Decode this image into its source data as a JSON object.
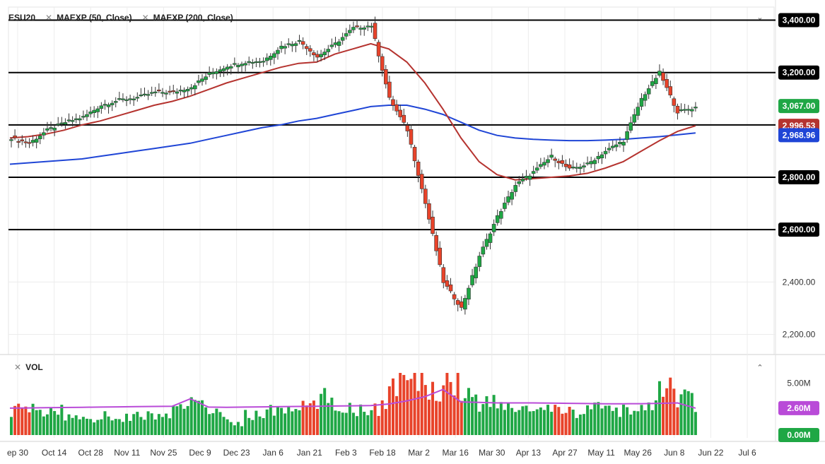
{
  "header": {
    "symbol": "ESU20",
    "studies": [
      "MAEXP (50, Close)",
      "MAEXP (200, Close)"
    ]
  },
  "volume_pane": {
    "label": "VOL",
    "axis_labels": [
      "5.00M"
    ],
    "current_label": "2.60M",
    "zero_label": "0.00M"
  },
  "colors": {
    "up": "#1fa745",
    "down": "#e8432a",
    "ma50": "#b5332f",
    "ma200": "#1f45d6",
    "vol_ma": "#b94bd8",
    "level_line": "#000000",
    "price_tag": "#000000",
    "last_price_tag": "#1fa745"
  },
  "chart_data": [
    {
      "type": "candlestick",
      "title": "ESU20",
      "ylim": [
        2150,
        3450
      ],
      "y_ticks": [
        "3,400.00",
        "3,200.00",
        "3,067.00",
        "2,996.53",
        "2,968.96",
        "2,800.00",
        "2,600.00",
        "2,400.00",
        "2,200.00"
      ],
      "horizontal_levels": [
        3400,
        3200,
        3000,
        2800,
        2600
      ],
      "last_price": 3067.0,
      "ma50_last": 2996.53,
      "ma200_last": 2968.96,
      "x_ticks": [
        "ep 30",
        "Oct 14",
        "Oct 28",
        "Nov 11",
        "Nov 25",
        "Dec 9",
        "Dec 23",
        "Jan 6",
        "Jan 21",
        "Feb 3",
        "Feb 18",
        "Mar 2",
        "Mar 16",
        "Mar 30",
        "Apr 13",
        "Apr 27",
        "May 11",
        "May 26",
        "Jun 8",
        "Jun 22",
        "Jul 6"
      ],
      "close_series_weekly": [
        {
          "date": "Sep 30",
          "close": 2950
        },
        {
          "date": "Oct 7",
          "close": 2930
        },
        {
          "date": "Oct 14",
          "close": 2980
        },
        {
          "date": "Oct 21",
          "close": 3010
        },
        {
          "date": "Oct 28",
          "close": 3030
        },
        {
          "date": "Nov 4",
          "close": 3075
        },
        {
          "date": "Nov 11",
          "close": 3095
        },
        {
          "date": "Nov 18",
          "close": 3105
        },
        {
          "date": "Nov 25",
          "close": 3125
        },
        {
          "date": "Dec 2",
          "close": 3125
        },
        {
          "date": "Dec 9",
          "close": 3145
        },
        {
          "date": "Dec 16",
          "close": 3195
        },
        {
          "date": "Dec 23",
          "close": 3225
        },
        {
          "date": "Dec 30",
          "close": 3240
        },
        {
          "date": "Jan 6",
          "close": 3245
        },
        {
          "date": "Jan 13",
          "close": 3300
        },
        {
          "date": "Jan 21",
          "close": 3320
        },
        {
          "date": "Jan 27",
          "close": 3260
        },
        {
          "date": "Feb 3",
          "close": 3310
        },
        {
          "date": "Feb 10",
          "close": 3370
        },
        {
          "date": "Feb 18",
          "close": 3380
        },
        {
          "date": "Feb 24",
          "close": 3100
        },
        {
          "date": "Mar 2",
          "close": 2980
        },
        {
          "date": "Mar 9",
          "close": 2700
        },
        {
          "date": "Mar 16",
          "close": 2400
        },
        {
          "date": "Mar 23",
          "close": 2300
        },
        {
          "date": "Mar 30",
          "close": 2500
        },
        {
          "date": "Apr 6",
          "close": 2650
        },
        {
          "date": "Apr 13",
          "close": 2770
        },
        {
          "date": "Apr 20",
          "close": 2820
        },
        {
          "date": "Apr 27",
          "close": 2880
        },
        {
          "date": "May 4",
          "close": 2830
        },
        {
          "date": "May 11",
          "close": 2850
        },
        {
          "date": "May 18",
          "close": 2900
        },
        {
          "date": "May 26",
          "close": 2940
        },
        {
          "date": "Jun 1",
          "close": 3100
        },
        {
          "date": "Jun 8",
          "close": 3200
        },
        {
          "date": "Jun 15",
          "close": 3050
        },
        {
          "date": "Jun 22",
          "close": 3067
        }
      ],
      "ma50": [
        2950,
        2955,
        2965,
        2980,
        3000,
        3015,
        3035,
        3055,
        3075,
        3090,
        3110,
        3135,
        3160,
        3180,
        3200,
        3220,
        3235,
        3240,
        3270,
        3290,
        3310,
        3290,
        3240,
        3160,
        3060,
        2950,
        2860,
        2810,
        2790,
        2795,
        2800,
        2805,
        2815,
        2835,
        2860,
        2900,
        2940,
        2975,
        2997
      ],
      "ma200": [
        2850,
        2855,
        2860,
        2865,
        2870,
        2880,
        2890,
        2900,
        2910,
        2920,
        2930,
        2945,
        2960,
        2975,
        2990,
        3000,
        3015,
        3025,
        3040,
        3055,
        3070,
        3075,
        3075,
        3060,
        3040,
        3010,
        2980,
        2960,
        2950,
        2945,
        2942,
        2940,
        2940,
        2942,
        2945,
        2950,
        2955,
        2962,
        2969
      ]
    },
    {
      "type": "bar",
      "title": "VOL",
      "ylim": [
        0,
        6000000
      ],
      "y_ticks": [
        "5.00M",
        "2.60M",
        "0.00M"
      ],
      "last_volume_ma": 2600000,
      "weekly_volume": [
        {
          "date": "Sep 30",
          "volume": 2500000
        },
        {
          "date": "Oct 7",
          "volume": 2400000
        },
        {
          "date": "Oct 14",
          "volume": 2300000
        },
        {
          "date": "Oct 21",
          "volume": 1800000
        },
        {
          "date": "Oct 28",
          "volume": 1700000
        },
        {
          "date": "Nov 4",
          "volume": 1800000
        },
        {
          "date": "Nov 11",
          "volume": 1700000
        },
        {
          "date": "Nov 18",
          "volume": 1900000
        },
        {
          "date": "Nov 25",
          "volume": 1800000
        },
        {
          "date": "Dec 2",
          "volume": 2400000
        },
        {
          "date": "Dec 9",
          "volume": 3700000
        },
        {
          "date": "Dec 16",
          "volume": 2000000
        },
        {
          "date": "Dec 23",
          "volume": 1200000
        },
        {
          "date": "Dec 30",
          "volume": 1900000
        },
        {
          "date": "Jan 6",
          "volume": 2300000
        },
        {
          "date": "Jan 13",
          "volume": 2400000
        },
        {
          "date": "Jan 21",
          "volume": 2700000
        },
        {
          "date": "Jan 27",
          "volume": 3500000
        },
        {
          "date": "Feb 3",
          "volume": 2800000
        },
        {
          "date": "Feb 10",
          "volume": 2500000
        },
        {
          "date": "Feb 18",
          "volume": 2600000
        },
        {
          "date": "Feb 24",
          "volume": 4900000
        },
        {
          "date": "Mar 2",
          "volume": 5000000
        },
        {
          "date": "Mar 9",
          "volume": 4600000
        },
        {
          "date": "Mar 16",
          "volume": 5300000
        },
        {
          "date": "Mar 23",
          "volume": 4000000
        },
        {
          "date": "Mar 30",
          "volume": 3100000
        },
        {
          "date": "Apr 6",
          "volume": 2700000
        },
        {
          "date": "Apr 13",
          "volume": 2600000
        },
        {
          "date": "Apr 20",
          "volume": 2300000
        },
        {
          "date": "Apr 27",
          "volume": 2400000
        },
        {
          "date": "May 4",
          "volume": 2300000
        },
        {
          "date": "May 11",
          "volume": 2700000
        },
        {
          "date": "May 18",
          "volume": 2200000
        },
        {
          "date": "May 26",
          "volume": 2500000
        },
        {
          "date": "Jun 1",
          "volume": 2700000
        },
        {
          "date": "Jun 8",
          "volume": 4600000
        },
        {
          "date": "Jun 15",
          "volume": 3800000
        },
        {
          "date": "Jun 22",
          "volume": 2600000
        }
      ],
      "vol_ma": [
        2600000,
        2620000,
        2640000,
        2660000,
        2680000,
        2700000,
        2720000,
        2740000,
        2760000,
        2780000,
        3500000,
        2700000,
        2680000,
        2700000,
        2720000,
        2740000,
        2760000,
        2780000,
        2800000,
        2820000,
        2850000,
        3000000,
        3300000,
        3700000,
        4400000,
        3200000,
        3150000,
        3100000,
        3100000,
        3100000,
        3080000,
        3060000,
        3040000,
        3020000,
        3020000,
        3030000,
        3060000,
        3100000,
        2600000
      ]
    }
  ]
}
